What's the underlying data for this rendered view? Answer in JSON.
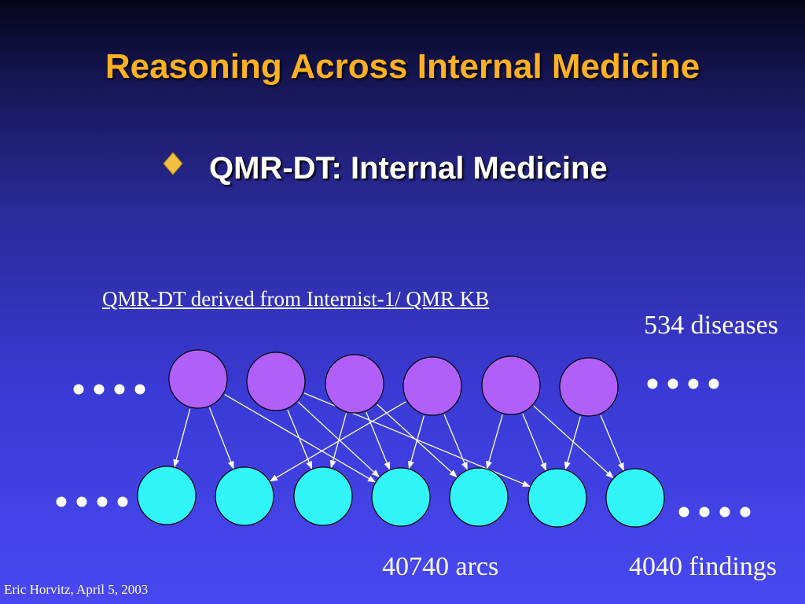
{
  "slide": {
    "title": "Reasoning Across Internal Medicine",
    "bullet": "QMR-DT: Internal Medicine",
    "caption": "QMR-DT derived from Internist-1/ QMR KB",
    "diseases_label": "534 diseases",
    "arcs_label": "40740 arcs",
    "findings_label": "4040 findings",
    "footer": "Eric Horvitz, April 5, 2003"
  },
  "colors": {
    "title": "#ffb020",
    "bullet": "#f0c040",
    "disease_node": "#b060f8",
    "finding_node": "#30f4f8",
    "arrow": "#ffffff"
  },
  "network": {
    "disease_count_shown": 6,
    "finding_count_shown": 7,
    "ellipsis": "...."
  }
}
